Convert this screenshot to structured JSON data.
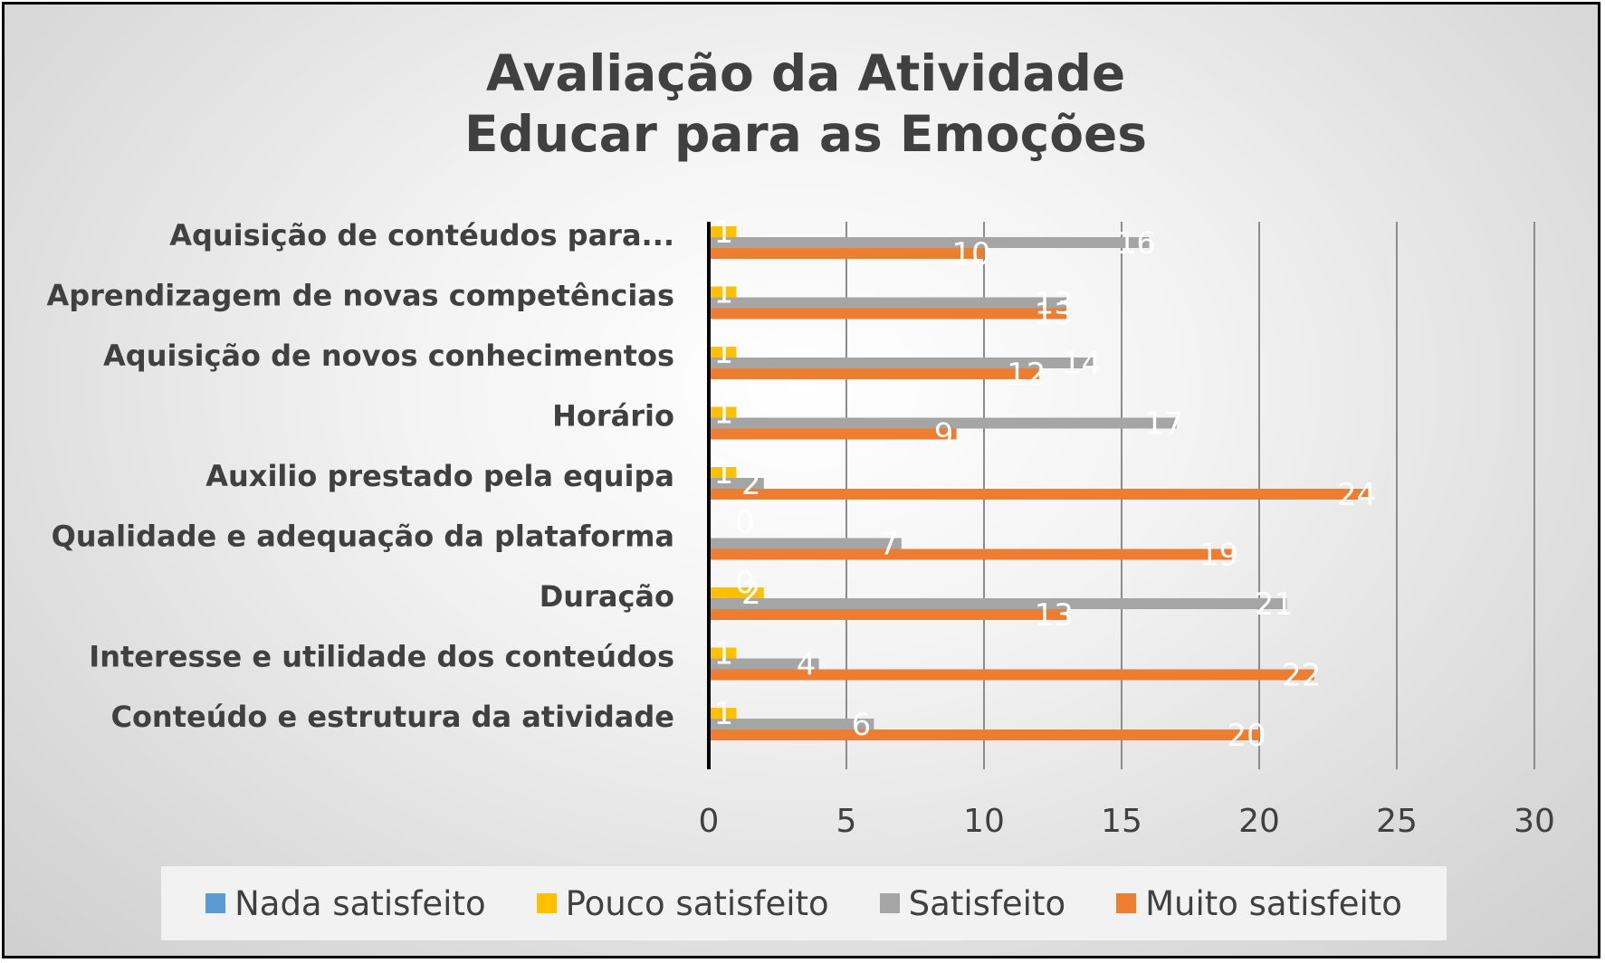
{
  "chart_data": {
    "type": "bar",
    "orientation": "horizontal",
    "title_lines": [
      "Avaliação da Atividade",
      "Educar para as Emoções"
    ],
    "categories": [
      "Aquisição de contéudos para...",
      "Aprendizagem de novas competências",
      "Aquisição de novos conhecimentos",
      "Horário",
      "Auxilio prestado pela equipa",
      "Qualidade e adequação da plataforma",
      "Duração",
      "Interesse  e utilidade dos conteúdos",
      "Conteúdo e estrutura da atividade"
    ],
    "series": [
      {
        "name": "Nada satisfeito",
        "color": "#5b9bd5",
        "values": [
          null,
          null,
          null,
          null,
          null,
          0,
          0,
          null,
          null
        ]
      },
      {
        "name": "Pouco satisfeito",
        "color": "#ffc000",
        "values": [
          1,
          1,
          1,
          1,
          1,
          null,
          2,
          1,
          1
        ]
      },
      {
        "name": "Satisfeito",
        "color": "#a5a5a5",
        "values": [
          16,
          13,
          14,
          17,
          2,
          7,
          21,
          4,
          6
        ]
      },
      {
        "name": "Muito satisfeito",
        "color": "#ed7d31",
        "values": [
          10,
          13,
          12,
          9,
          24,
          19,
          13,
          22,
          20
        ]
      }
    ],
    "x_ticks": [
      "0",
      "5",
      "10",
      "15",
      "20",
      "25",
      "30"
    ],
    "xlim": [
      0,
      30
    ],
    "grid": true,
    "legend_position": "bottom"
  }
}
